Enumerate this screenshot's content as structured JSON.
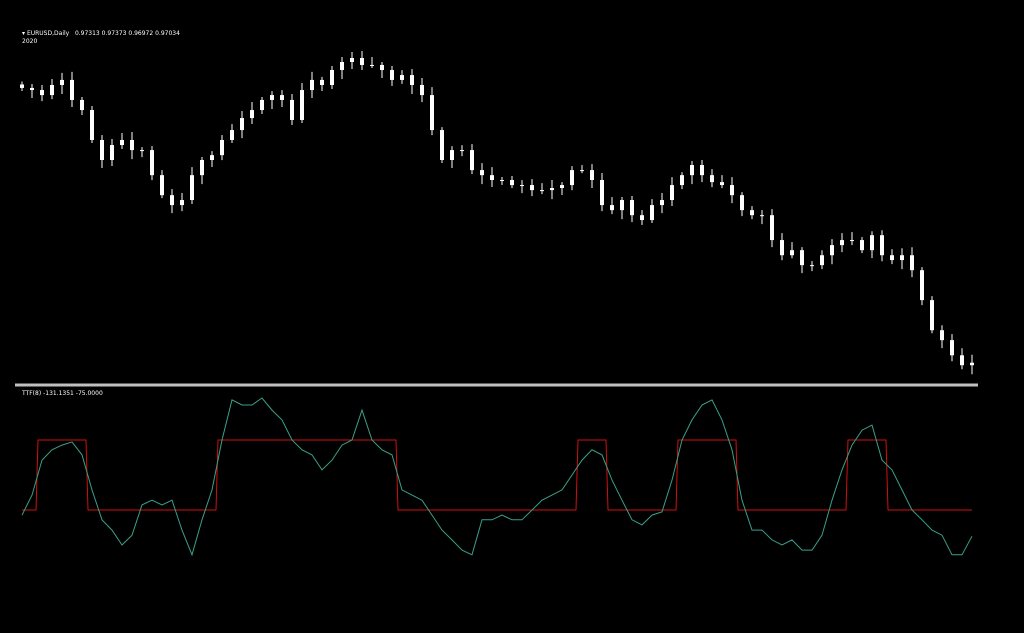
{
  "main_pane": {
    "symbol_label": "EURUSD,Daily",
    "ohlc": "0.97313 0.97373 0.96972 0.97034",
    "year_label": "2020"
  },
  "indicator_pane": {
    "label": "TTF(8) -131.1351 -75.0000"
  },
  "colors": {
    "background": "#000000",
    "candle": "#ffffff",
    "separator": "#c0c0c0",
    "ttf_line": "#3aa08a",
    "signal_line": "#d01010"
  },
  "chart_data": [
    {
      "type": "candlestick",
      "series_name": "EURUSD,Daily",
      "last_close": 0.97034,
      "ylim": [
        0.965,
        1.15
      ],
      "closes": [
        1.1282,
        1.127,
        1.1241,
        1.1299,
        1.1328,
        1.1213,
        1.1155,
        1.0983,
        1.0868,
        1.0954,
        1.0983,
        1.0925,
        1.0925,
        1.0781,
        1.0666,
        1.0609,
        1.0638,
        1.0781,
        1.0868,
        1.0896,
        1.0983,
        1.104,
        1.1109,
        1.1155,
        1.1213,
        1.1241,
        1.1213,
        1.1098,
        1.127,
        1.1328,
        1.1299,
        1.1385,
        1.1431,
        1.1454,
        1.1414,
        1.1414,
        1.1385,
        1.1328,
        1.1356,
        1.1299,
        1.1241,
        1.104,
        1.0868,
        1.0925,
        1.0925,
        1.081,
        1.0781,
        1.0753,
        1.0753,
        1.0724,
        1.0724,
        1.0695,
        1.0695,
        1.0707,
        1.0724,
        1.081,
        1.081,
        1.0753,
        1.0609,
        1.058,
        1.0638,
        1.0551,
        1.0523,
        1.0609,
        1.0638,
        1.0724,
        1.0781,
        1.0839,
        1.0781,
        1.0741,
        1.0724,
        1.0666,
        1.058,
        1.0551,
        1.0551,
        1.0408,
        1.0321,
        1.035,
        1.0264,
        1.0264,
        1.0321,
        1.0379,
        1.0408,
        1.0408,
        1.035,
        1.0436,
        1.0321,
        1.0293,
        1.0321,
        1.0235,
        1.0063,
        0.989,
        0.9833,
        0.9746,
        0.9689,
        0.97034
      ]
    },
    {
      "type": "line",
      "title": "TTF(8)",
      "ylim": [
        -180,
        175
      ],
      "series": [
        {
          "name": "TTF",
          "values": [
            -86,
            -43,
            32,
            54,
            64,
            71,
            43,
            -32,
            -96,
            -118,
            -150,
            -129,
            -64,
            -54,
            -64,
            -54,
            -118,
            -171,
            -96,
            -32,
            75,
            161,
            150,
            150,
            165,
            139,
            118,
            75,
            54,
            43,
            11,
            32,
            64,
            75,
            139,
            75,
            54,
            43,
            -32,
            -43,
            -54,
            -86,
            -118,
            -139,
            -161,
            -171,
            -96,
            -96,
            -86,
            -96,
            -96,
            -75,
            -54,
            -43,
            -32,
            0,
            32,
            54,
            43,
            -11,
            -54,
            -96,
            -107,
            -86,
            -79,
            -11,
            75,
            118,
            150,
            161,
            118,
            54,
            -54,
            -118,
            -118,
            -139,
            -150,
            -139,
            -161,
            -161,
            -129,
            -54,
            11,
            64,
            96,
            107,
            32,
            11,
            -32,
            -75,
            -96,
            -118,
            -129,
            -171,
            -171,
            -131.1351
          ]
        },
        {
          "name": "Signal",
          "values": [
            -75,
            -75,
            75,
            75,
            75,
            75,
            75,
            -75,
            -75,
            -75,
            -75,
            -75,
            -75,
            -75,
            -75,
            -75,
            -75,
            -75,
            -75,
            -75,
            75,
            75,
            75,
            75,
            75,
            75,
            75,
            75,
            75,
            75,
            75,
            75,
            75,
            75,
            75,
            75,
            75,
            75,
            -75,
            -75,
            -75,
            -75,
            -75,
            -75,
            -75,
            -75,
            -75,
            -75,
            -75,
            -75,
            -75,
            -75,
            -75,
            -75,
            -75,
            -75,
            75,
            75,
            75,
            -75,
            -75,
            -75,
            -75,
            -75,
            -75,
            -75,
            75,
            75,
            75,
            75,
            75,
            75,
            -75,
            -75,
            -75,
            -75,
            -75,
            -75,
            -75,
            -75,
            -75,
            -75,
            -75,
            75,
            75,
            75,
            75,
            -75,
            -75,
            -75,
            -75,
            -75,
            -75,
            -75,
            -75,
            -75
          ]
        }
      ]
    }
  ]
}
